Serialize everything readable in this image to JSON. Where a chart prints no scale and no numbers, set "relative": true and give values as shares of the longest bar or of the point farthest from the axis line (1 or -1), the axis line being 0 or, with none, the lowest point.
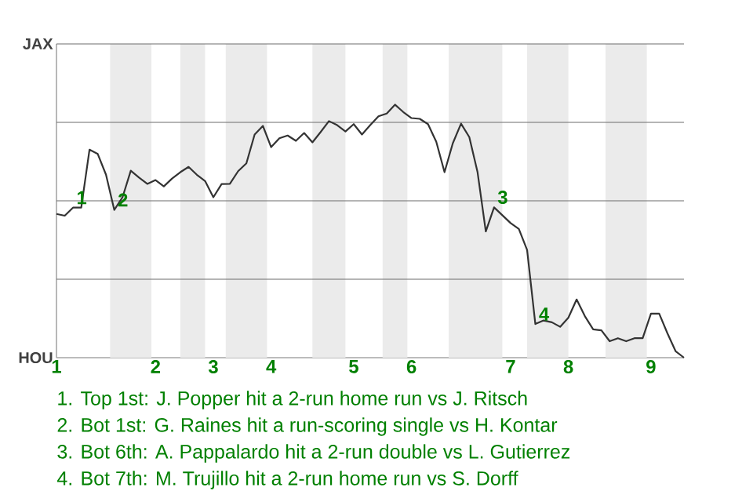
{
  "chart_data": {
    "type": "line",
    "relative": true,
    "categories": [
      "1",
      null,
      null,
      null,
      null,
      null,
      null,
      null,
      null,
      null,
      null,
      null,
      "2",
      null,
      null,
      null,
      null,
      null,
      null,
      "3",
      null,
      null,
      null,
      null,
      null,
      null,
      "4",
      null,
      null,
      null,
      null,
      null,
      null,
      null,
      null,
      null,
      "5",
      null,
      null,
      null,
      null,
      null,
      null,
      "6",
      null,
      null,
      null,
      null,
      null,
      null,
      null,
      null,
      null,
      null,
      null,
      "7",
      null,
      null,
      null,
      null,
      null,
      null,
      "8",
      null,
      null,
      null,
      null,
      null,
      null,
      null,
      null,
      null,
      "9",
      null,
      null,
      null,
      null
    ],
    "series": [
      {
        "color": "#333333",
        "values": [
          0.568,
          0.561,
          0.593,
          0.593,
          0.822,
          0.805,
          0.723,
          0.584,
          0.634,
          0.739,
          0.712,
          0.687,
          0.702,
          0.677,
          0.708,
          0.733,
          0.754,
          0.723,
          0.698,
          0.634,
          0.686,
          0.687,
          0.737,
          0.768,
          0.882,
          0.916,
          0.832,
          0.867,
          0.878,
          0.857,
          0.888,
          0.851,
          0.892,
          0.935,
          0.919,
          0.894,
          0.923,
          0.882,
          0.919,
          0.954,
          0.965,
          1,
          0.971,
          0.947,
          0.944,
          0.923,
          0.853,
          0.733,
          0.847,
          0.925,
          0.872,
          0.733,
          0.499,
          0.594,
          0.563,
          0.532,
          0.509,
          0.426,
          0.133,
          0.147,
          0.14,
          0.122,
          0.158,
          0.23,
          0.164,
          0.112,
          0.108,
          0.065,
          0.077,
          0.065,
          0.077,
          0.077,
          0.174,
          0.174,
          0.096,
          0.025,
          0
        ]
      }
    ],
    "grid": "y",
    "annotations": [
      {
        "text": "1",
        "y": 0.593
      },
      {
        "text": "2",
        "y": 0.584
      },
      {
        "text": "3",
        "y": 0.594
      },
      {
        "text": "4",
        "y": 0.133
      },
      "JAX",
      "HOU",
      "1. Top 1st: J. Popper hit a 2-run home run vs J. Ritsch",
      "2. Bot 1st: G. Raines hit a run-scoring single vs H. Kontar",
      "3. Bot 6th: A. Pappalardo hit a 2-run double vs L. Gutierrez",
      "4. Bot 7th: M. Trujillo hit a 2-run home run vs S. Dorff"
    ]
  }
}
